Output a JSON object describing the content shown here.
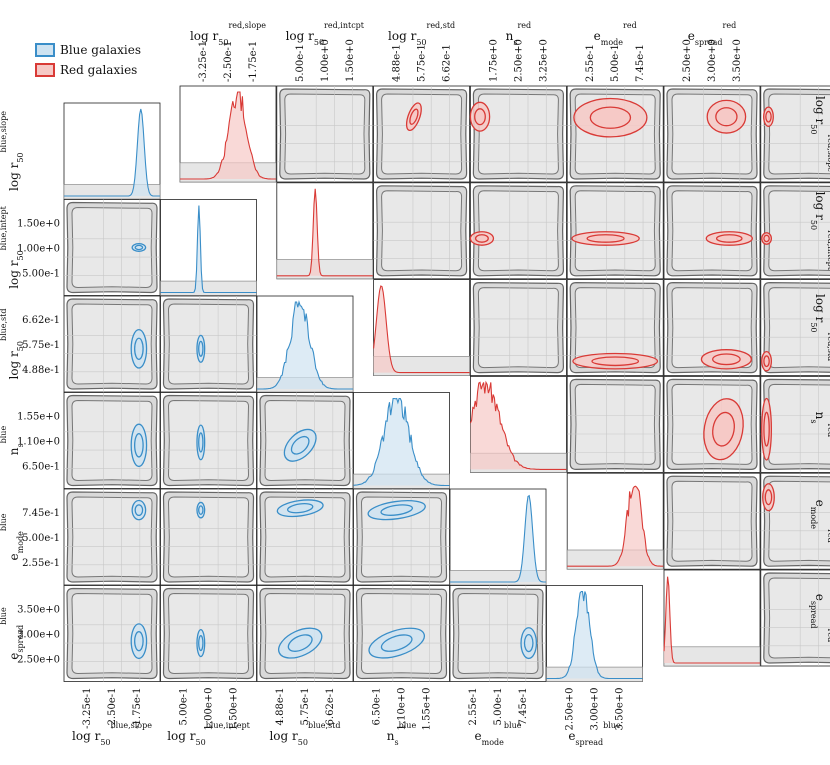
{
  "chart_data": {
    "type": "corner-plot",
    "title": "",
    "colors": {
      "blue": "#3a8ec8",
      "blue_fill": "#cfe3f1",
      "red": "#d93a36",
      "red_fill": "#f6c9c6",
      "panel_fill": "#e8e8e8",
      "panel_edge": "#555555"
    },
    "legend": {
      "position": "top-left",
      "entries": [
        {
          "label": "Blue galaxies",
          "color": "#3a8ec8"
        },
        {
          "label": "Red galaxies",
          "color": "#d93a36"
        }
      ]
    },
    "blue": {
      "params": [
        {
          "label": "log r50 blue,slope",
          "ticks": [
            "-3.25e-1",
            "-2.50e-1",
            "-1.75e-1"
          ],
          "peak": 0.8,
          "width": 0.035
        },
        {
          "label": "log r50 blue,intept",
          "ticks": [
            "5.00e-1",
            "1.00e+0",
            "1.50e+0"
          ],
          "peak": 0.4,
          "width": 0.015
        },
        {
          "label": "log r50 blue,std",
          "ticks": [
            "4.88e-1",
            "5.75e-1",
            "6.62e-1"
          ],
          "peak": 0.45,
          "width": 0.1
        },
        {
          "label": "n_s blue",
          "ticks": [
            "6.50e-1",
            "1.10e+0",
            "1.55e+0"
          ],
          "peak": 0.45,
          "width": 0.13
        },
        {
          "label": "e_mode blue",
          "ticks": [
            "2.55e-1",
            "5.00e-1",
            "7.45e-1"
          ],
          "peak": 0.82,
          "width": 0.04
        },
        {
          "label": "e_spread blue",
          "ticks": [
            "2.50e+0",
            "3.00e+0",
            "3.50e+0"
          ],
          "peak": 0.38,
          "width": 0.07
        }
      ]
    },
    "red": {
      "params": [
        {
          "label": "log r50 red,slope",
          "ticks": [
            "-3.25e-1",
            "-2.50e-1",
            "-1.75e-1"
          ],
          "peak": 0.6,
          "width": 0.09
        },
        {
          "label": "log r50 red,intcpt",
          "ticks": [
            "5.00e-1",
            "1.00e+0",
            "1.50e+0"
          ],
          "peak": 0.4,
          "width": 0.02
        },
        {
          "label": "log r50 red,std",
          "ticks": [
            "4.88e-1",
            "5.75e-1",
            "6.62e-1"
          ],
          "peak": 0.08,
          "width": 0.05
        },
        {
          "label": "n_s red",
          "ticks": [
            "1.75e+0",
            "2.50e+0",
            "3.25e+0"
          ],
          "peak": 0.15,
          "width": 0.15
        },
        {
          "label": "e_mode red",
          "ticks": [
            "2.55e-1",
            "5.00e-1",
            "7.45e-1"
          ],
          "peak": 0.7,
          "width": 0.07
        },
        {
          "label": "e_spread red",
          "ticks": [
            "2.50e+0",
            "3.00e+0",
            "3.50e+0"
          ],
          "peak": 0.04,
          "width": 0.02
        }
      ]
    },
    "axis_labels": {
      "bottom": [
        {
          "base": "log r",
          "sub": "50",
          "sup": "blue,slope"
        },
        {
          "base": "log r",
          "sub": "50",
          "sup": "blue,intept"
        },
        {
          "base": "log r",
          "sub": "50",
          "sup": "blue,std"
        },
        {
          "base": "n",
          "sub": "s",
          "sup": "blue"
        },
        {
          "base": "e",
          "sub": "mode",
          "sup": "blue"
        },
        {
          "base": "e",
          "sub": "spread",
          "sup": "blue"
        }
      ],
      "left": [
        {
          "base": "log r",
          "sub": "50",
          "sup": "blue,slope"
        },
        {
          "base": "log r",
          "sub": "50",
          "sup": "blue,intept"
        },
        {
          "base": "log r",
          "sub": "50",
          "sup": "blue,std"
        },
        {
          "base": "n",
          "sub": "s",
          "sup": "blue"
        },
        {
          "base": "e",
          "sub": "mode",
          "sup": "blue"
        },
        {
          "base": "e",
          "sub": "spread",
          "sup": "blue"
        }
      ],
      "top": [
        {
          "base": "log r",
          "sub": "50",
          "sup": "red,slope"
        },
        {
          "base": "log r",
          "sub": "50",
          "sup": "red,intcpt"
        },
        {
          "base": "log r",
          "sub": "50",
          "sup": "red,std"
        },
        {
          "base": "n",
          "sub": "s",
          "sup": "red"
        },
        {
          "base": "e",
          "sub": "mode",
          "sup": "red"
        },
        {
          "base": "e",
          "sub": "spread",
          "sup": "red"
        }
      ],
      "right": [
        {
          "base": "log r",
          "sub": "50",
          "sup": "red,slope"
        },
        {
          "base": "log r",
          "sub": "50",
          "sup": "red,intcpt"
        },
        {
          "base": "log r",
          "sub": "50",
          "sup": "red,std"
        },
        {
          "base": "n",
          "sub": "s",
          "sup": "red"
        },
        {
          "base": "e",
          "sub": "mode",
          "sup": "red"
        },
        {
          "base": "e",
          "sub": "spread",
          "sup": "red"
        }
      ]
    },
    "blue_contours": [
      {
        "row": 1,
        "col": 0,
        "cx": 0.78,
        "cy": 0.5,
        "rx": 0.07,
        "ry": 0.04,
        "rot": 0
      },
      {
        "row": 2,
        "col": 0,
        "cx": 0.78,
        "cy": 0.55,
        "rx": 0.08,
        "ry": 0.2,
        "rot": 0
      },
      {
        "row": 2,
        "col": 1,
        "cx": 0.42,
        "cy": 0.55,
        "rx": 0.04,
        "ry": 0.14,
        "rot": 0
      },
      {
        "row": 3,
        "col": 0,
        "cx": 0.78,
        "cy": 0.55,
        "rx": 0.08,
        "ry": 0.22,
        "rot": 0
      },
      {
        "row": 3,
        "col": 1,
        "cx": 0.42,
        "cy": 0.52,
        "rx": 0.04,
        "ry": 0.18,
        "rot": 0
      },
      {
        "row": 3,
        "col": 2,
        "cx": 0.45,
        "cy": 0.55,
        "rx": 0.2,
        "ry": 0.12,
        "rot": -45
      },
      {
        "row": 4,
        "col": 0,
        "cx": 0.78,
        "cy": 0.22,
        "rx": 0.07,
        "ry": 0.1,
        "rot": 0
      },
      {
        "row": 4,
        "col": 1,
        "cx": 0.42,
        "cy": 0.22,
        "rx": 0.04,
        "ry": 0.08,
        "rot": 0
      },
      {
        "row": 4,
        "col": 2,
        "cx": 0.45,
        "cy": 0.2,
        "rx": 0.24,
        "ry": 0.08,
        "rot": -8
      },
      {
        "row": 4,
        "col": 3,
        "cx": 0.45,
        "cy": 0.22,
        "rx": 0.3,
        "ry": 0.09,
        "rot": -8
      },
      {
        "row": 5,
        "col": 0,
        "cx": 0.78,
        "cy": 0.58,
        "rx": 0.08,
        "ry": 0.18,
        "rot": 0
      },
      {
        "row": 5,
        "col": 1,
        "cx": 0.42,
        "cy": 0.6,
        "rx": 0.04,
        "ry": 0.14,
        "rot": 0
      },
      {
        "row": 5,
        "col": 2,
        "cx": 0.45,
        "cy": 0.6,
        "rx": 0.24,
        "ry": 0.13,
        "rot": -25
      },
      {
        "row": 5,
        "col": 3,
        "cx": 0.45,
        "cy": 0.6,
        "rx": 0.3,
        "ry": 0.13,
        "rot": -18
      },
      {
        "row": 5,
        "col": 4,
        "cx": 0.82,
        "cy": 0.6,
        "rx": 0.08,
        "ry": 0.16,
        "rot": 0
      }
    ],
    "red_contours": [
      {
        "row": 0,
        "col": 2,
        "cx": 0.42,
        "cy": 0.32,
        "rx": 0.06,
        "ry": 0.15,
        "rot": 20
      },
      {
        "row": 0,
        "col": 3,
        "cx": 0.1,
        "cy": 0.32,
        "rx": 0.1,
        "ry": 0.15,
        "rot": 0
      },
      {
        "row": 0,
        "col": 4,
        "cx": 0.45,
        "cy": 0.33,
        "rx": 0.38,
        "ry": 0.2,
        "rot": 0
      },
      {
        "row": 0,
        "col": 5,
        "cx": 0.65,
        "cy": 0.32,
        "rx": 0.2,
        "ry": 0.17,
        "rot": 0
      },
      {
        "row": 0,
        "col": 6,
        "cx": 0.08,
        "cy": 0.32,
        "rx": 0.05,
        "ry": 0.1,
        "rot": 0
      },
      {
        "row": 1,
        "col": 3,
        "cx": 0.12,
        "cy": 0.58,
        "rx": 0.12,
        "ry": 0.07,
        "rot": 0
      },
      {
        "row": 1,
        "col": 4,
        "cx": 0.4,
        "cy": 0.58,
        "rx": 0.35,
        "ry": 0.07,
        "rot": 0
      },
      {
        "row": 1,
        "col": 5,
        "cx": 0.68,
        "cy": 0.58,
        "rx": 0.24,
        "ry": 0.07,
        "rot": 0
      },
      {
        "row": 1,
        "col": 6,
        "cx": 0.06,
        "cy": 0.58,
        "rx": 0.05,
        "ry": 0.06,
        "rot": 0
      },
      {
        "row": 2,
        "col": 4,
        "cx": 0.5,
        "cy": 0.85,
        "rx": 0.44,
        "ry": 0.08,
        "rot": 0
      },
      {
        "row": 2,
        "col": 5,
        "cx": 0.65,
        "cy": 0.83,
        "rx": 0.26,
        "ry": 0.1,
        "rot": 0
      },
      {
        "row": 2,
        "col": 6,
        "cx": 0.06,
        "cy": 0.85,
        "rx": 0.05,
        "ry": 0.1,
        "rot": 0
      },
      {
        "row": 3,
        "col": 5,
        "cx": 0.62,
        "cy": 0.55,
        "rx": 0.2,
        "ry": 0.32,
        "rot": 10
      },
      {
        "row": 3,
        "col": 6,
        "cx": 0.06,
        "cy": 0.55,
        "rx": 0.05,
        "ry": 0.32,
        "rot": 0
      },
      {
        "row": 4,
        "col": 6,
        "cx": 0.08,
        "cy": 0.25,
        "rx": 0.06,
        "ry": 0.14,
        "rot": 0
      }
    ]
  }
}
